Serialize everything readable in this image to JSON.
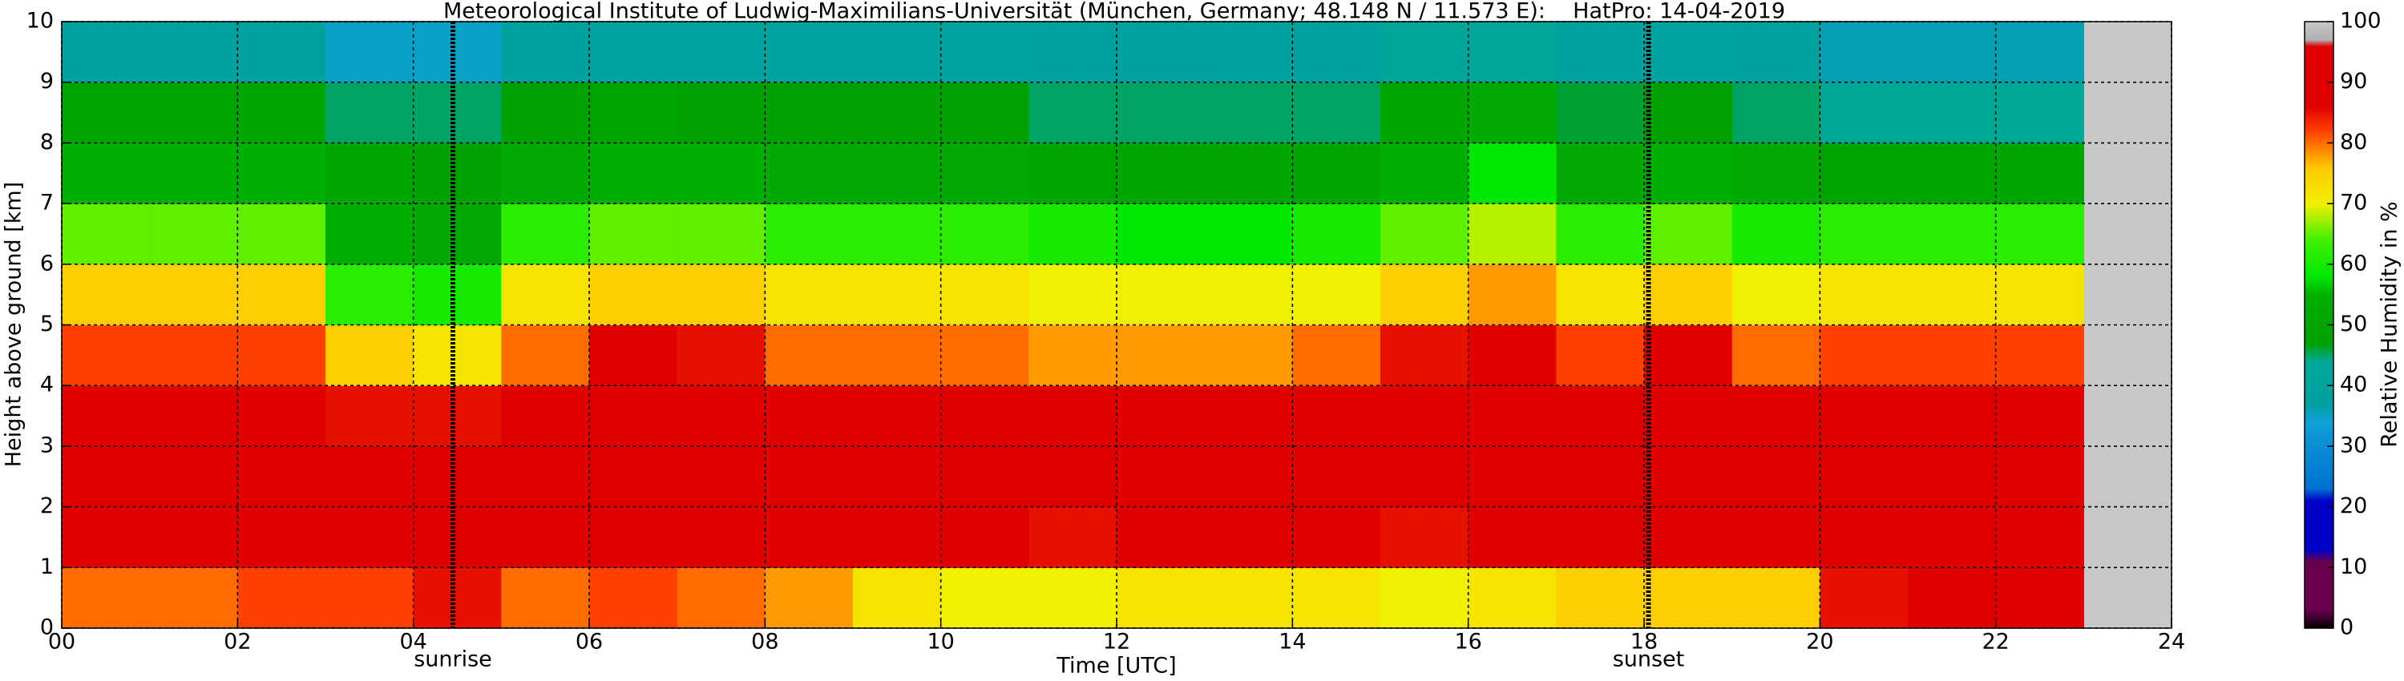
{
  "chart_data": {
    "type": "heatmap",
    "title": "Meteorological Institute of Ludwig-Maximilians-Universität (München, Germany; 48.148 N / 11.573 E):    HatPro: 14-04-2019",
    "xlabel": "Time [UTC]",
    "ylabel": "Height above ground [km]",
    "colorbar_label": "Relative Humidity in %",
    "xlim": [
      0,
      24
    ],
    "ylim": [
      0,
      10
    ],
    "clim": [
      0,
      100
    ],
    "xticks": [
      {
        "value": 0,
        "label": "00"
      },
      {
        "value": 2,
        "label": "02"
      },
      {
        "value": 4,
        "label": "04"
      },
      {
        "value": 6,
        "label": "06"
      },
      {
        "value": 8,
        "label": "08"
      },
      {
        "value": 10,
        "label": "10"
      },
      {
        "value": 12,
        "label": "12"
      },
      {
        "value": 14,
        "label": "14"
      },
      {
        "value": 16,
        "label": "16"
      },
      {
        "value": 18,
        "label": "18"
      },
      {
        "value": 20,
        "label": "20"
      },
      {
        "value": 22,
        "label": "22"
      },
      {
        "value": 24,
        "label": "24"
      }
    ],
    "yticks": [
      0,
      1,
      2,
      3,
      4,
      5,
      6,
      7,
      8,
      9,
      10
    ],
    "cticks": [
      0,
      10,
      20,
      30,
      40,
      50,
      60,
      70,
      80,
      90,
      100
    ],
    "grid": true,
    "missing_color": "#c8c8c8",
    "annotations": [
      {
        "text": "sunrise",
        "x": 4.45
      },
      {
        "text": "sunset",
        "x": 18.05
      }
    ],
    "colormap": [
      {
        "value": 0,
        "color": "#000000"
      },
      {
        "value": 3,
        "color": "#6a0050"
      },
      {
        "value": 11,
        "color": "#6a0050"
      },
      {
        "value": 13,
        "color": "#0000c8"
      },
      {
        "value": 21,
        "color": "#0000c8"
      },
      {
        "value": 23,
        "color": "#0070d0"
      },
      {
        "value": 34,
        "color": "#10a0d8"
      },
      {
        "value": 37,
        "color": "#00a0a0"
      },
      {
        "value": 44,
        "color": "#00a898"
      },
      {
        "value": 47,
        "color": "#00a000"
      },
      {
        "value": 55,
        "color": "#00b000"
      },
      {
        "value": 58,
        "color": "#00e800"
      },
      {
        "value": 64,
        "color": "#40f000"
      },
      {
        "value": 70,
        "color": "#f0f000"
      },
      {
        "value": 76,
        "color": "#ffc800"
      },
      {
        "value": 82,
        "color": "#ff4000"
      },
      {
        "value": 86,
        "color": "#e00000"
      },
      {
        "value": 96,
        "color": "#e00000"
      },
      {
        "value": 97,
        "color": "#b0b0b0"
      },
      {
        "value": 100,
        "color": "#c8c8c8"
      }
    ],
    "x_edges": [
      0,
      1,
      2,
      3,
      4,
      5,
      6,
      7,
      8,
      9,
      10,
      11,
      12,
      13,
      14,
      15,
      16,
      17,
      18,
      19,
      20,
      21,
      22,
      23
    ],
    "y_edges": [
      0,
      1,
      2,
      3,
      4,
      5,
      6,
      7,
      8,
      9,
      10
    ],
    "z": [
      [
        80,
        92,
        92,
        88,
        82,
        75,
        65,
        55,
        50,
        38
      ],
      [
        80,
        92,
        92,
        88,
        82,
        75,
        65,
        55,
        50,
        38
      ],
      [
        82,
        92,
        92,
        88,
        82,
        75,
        65,
        55,
        50,
        38
      ],
      [
        82,
        93,
        93,
        85,
        75,
        62,
        55,
        50,
        45,
        35
      ],
      [
        85,
        93,
        93,
        85,
        72,
        60,
        52,
        48,
        45,
        35
      ],
      [
        80,
        92,
        92,
        88,
        80,
        72,
        62,
        52,
        48,
        38
      ],
      [
        82,
        93,
        93,
        93,
        88,
        75,
        65,
        55,
        50,
        40
      ],
      [
        80,
        93,
        93,
        90,
        85,
        75,
        65,
        55,
        48,
        40
      ],
      [
        78,
        92,
        92,
        88,
        80,
        72,
        62,
        52,
        48,
        40
      ],
      [
        72,
        90,
        92,
        88,
        80,
        72,
        62,
        52,
        48,
        40
      ],
      [
        70,
        88,
        92,
        88,
        80,
        72,
        62,
        52,
        48,
        40
      ],
      [
        70,
        85,
        92,
        88,
        78,
        70,
        60,
        50,
        45,
        38
      ],
      [
        72,
        88,
        92,
        88,
        78,
        70,
        58,
        50,
        45,
        38
      ],
      [
        72,
        88,
        92,
        88,
        78,
        70,
        58,
        50,
        45,
        38
      ],
      [
        72,
        88,
        92,
        88,
        80,
        70,
        60,
        50,
        45,
        38
      ],
      [
        70,
        85,
        92,
        90,
        85,
        75,
        65,
        55,
        50,
        42
      ],
      [
        72,
        90,
        93,
        92,
        88,
        78,
        68,
        58,
        52,
        42
      ],
      [
        75,
        90,
        93,
        90,
        82,
        72,
        62,
        52,
        46,
        38
      ],
      [
        75,
        90,
        93,
        92,
        86,
        75,
        65,
        55,
        48,
        40
      ],
      [
        75,
        90,
        92,
        90,
        80,
        70,
        60,
        52,
        45,
        38
      ],
      [
        85,
        92,
        92,
        90,
        82,
        72,
        62,
        50,
        44,
        36
      ],
      [
        86,
        92,
        92,
        90,
        82,
        72,
        62,
        50,
        44,
        36
      ],
      [
        88,
        93,
        92,
        90,
        82,
        72,
        62,
        50,
        44,
        36
      ]
    ]
  }
}
